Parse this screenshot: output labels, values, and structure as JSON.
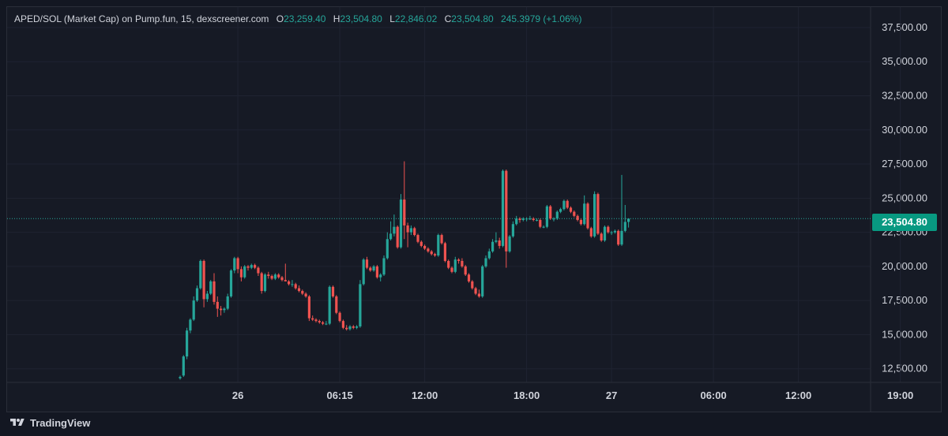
{
  "legend": {
    "pair": "APED/SOL (Market Cap) on Pump.fun, 15, dexscreener.com",
    "open_key": "O",
    "open": "23,259.40",
    "high_key": "H",
    "high": "23,504.80",
    "low_key": "L",
    "low": "22,846.02",
    "close_key": "C",
    "close": "23,504.80",
    "change": "245.3979 (+1.06%)"
  },
  "price_tag": "23,504.80",
  "footer": {
    "brand": "TradingView"
  },
  "colors": {
    "background": "#161a25",
    "grid": "#1f2331",
    "up": "#26a69a",
    "down": "#ef5350",
    "text": "#d1d4dc",
    "price_line": "#26a69a"
  },
  "chart_data": {
    "type": "candlestick",
    "ylim": [
      11500,
      39000
    ],
    "y_ticks": [
      12500,
      15000,
      17500,
      20000,
      22500,
      25000,
      27500,
      30000,
      32500,
      35000,
      37500
    ],
    "y_tick_labels": [
      "12,500.00",
      "15,000.00",
      "17,500.00",
      "20,000.00",
      "22,500.00",
      "25,000.00",
      "27,500.00",
      "30,000.00",
      "32,500.00",
      "35,000.00",
      "37,500.00"
    ],
    "x_tick_labels": [
      "26",
      "06:15",
      "12:00",
      "18:00",
      "27",
      "06:00",
      "12:00",
      "19:00"
    ],
    "x_tick_index": [
      17,
      47,
      72,
      102,
      127,
      157,
      182,
      212
    ],
    "last_price": 23504.8,
    "grid": true,
    "candles": [
      [
        11800,
        12000,
        11700,
        11900
      ],
      [
        12000,
        13500,
        11900,
        13400
      ],
      [
        13400,
        15500,
        13200,
        15300
      ],
      [
        15300,
        16200,
        15100,
        16100
      ],
      [
        16100,
        17800,
        16000,
        17500
      ],
      [
        17500,
        18600,
        17400,
        18400
      ],
      [
        18400,
        20500,
        18300,
        20400
      ],
      [
        20400,
        20500,
        17000,
        17600
      ],
      [
        17600,
        18200,
        17400,
        18000
      ],
      [
        18000,
        19000,
        17900,
        18900
      ],
      [
        18900,
        19500,
        17200,
        17400
      ],
      [
        17400,
        17800,
        16300,
        16900
      ],
      [
        16900,
        17100,
        16400,
        16800
      ],
      [
        16800,
        17000,
        16600,
        16900
      ],
      [
        16900,
        18000,
        16800,
        17800
      ],
      [
        17800,
        19800,
        17700,
        19700
      ],
      [
        19700,
        20700,
        19500,
        20600
      ],
      [
        20600,
        20700,
        19500,
        19800
      ],
      [
        19800,
        20000,
        18900,
        19200
      ],
      [
        19200,
        20100,
        19100,
        20000
      ],
      [
        20000,
        20100,
        19700,
        19900
      ],
      [
        19900,
        20200,
        19800,
        20100
      ],
      [
        20100,
        20200,
        19800,
        19900
      ],
      [
        19900,
        20000,
        19300,
        19500
      ],
      [
        19500,
        19600,
        18000,
        18200
      ],
      [
        18200,
        19500,
        18100,
        19400
      ],
      [
        19400,
        19600,
        19100,
        19300
      ],
      [
        19300,
        19400,
        19000,
        19100
      ],
      [
        19100,
        19500,
        19000,
        19400
      ],
      [
        19400,
        19500,
        19100,
        19200
      ],
      [
        19200,
        19300,
        18900,
        19000
      ],
      [
        19000,
        20200,
        18900,
        18900
      ],
      [
        18900,
        19000,
        18600,
        18700
      ],
      [
        18700,
        19000,
        18500,
        18700
      ],
      [
        18700,
        18800,
        18300,
        18400
      ],
      [
        18400,
        18600,
        18100,
        18200
      ],
      [
        18200,
        18300,
        17900,
        18000
      ],
      [
        18000,
        18100,
        17700,
        17800
      ],
      [
        17800,
        17900,
        16000,
        16200
      ],
      [
        16200,
        16400,
        16000,
        16100
      ],
      [
        16100,
        16200,
        15900,
        16000
      ],
      [
        16000,
        16100,
        15800,
        15900
      ],
      [
        15900,
        16000,
        15700,
        15800
      ],
      [
        15800,
        16000,
        15700,
        15800
      ],
      [
        15800,
        18600,
        15700,
        18500
      ],
      [
        18500,
        18600,
        17700,
        17800
      ],
      [
        17800,
        17900,
        16500,
        16600
      ],
      [
        16600,
        16700,
        15900,
        16000
      ],
      [
        16000,
        16100,
        15400,
        15500
      ],
      [
        15500,
        15700,
        15300,
        15400
      ],
      [
        15400,
        15700,
        15300,
        15600
      ],
      [
        15600,
        15700,
        15400,
        15500
      ],
      [
        15500,
        15700,
        15400,
        15600
      ],
      [
        15600,
        19000,
        15500,
        18700
      ],
      [
        18700,
        20600,
        18600,
        20500
      ],
      [
        20500,
        20700,
        19800,
        19900
      ],
      [
        19900,
        20000,
        19600,
        19700
      ],
      [
        19700,
        20100,
        19600,
        20000
      ],
      [
        20000,
        20100,
        19100,
        19200
      ],
      [
        19200,
        19500,
        18900,
        19400
      ],
      [
        19400,
        20800,
        19300,
        20600
      ],
      [
        20600,
        22500,
        20500,
        22000
      ],
      [
        22000,
        23300,
        21900,
        22400
      ],
      [
        22400,
        23800,
        22200,
        22900
      ],
      [
        22900,
        23000,
        21300,
        21400
      ],
      [
        21400,
        25300,
        21300,
        24900
      ],
      [
        24900,
        27700,
        22000,
        23000
      ],
      [
        23000,
        23200,
        21400,
        22500
      ],
      [
        22500,
        23000,
        22300,
        22800
      ],
      [
        22800,
        22900,
        22200,
        22300
      ],
      [
        22300,
        22400,
        21700,
        21800
      ],
      [
        21800,
        21900,
        21400,
        21500
      ],
      [
        21500,
        21600,
        21200,
        21300
      ],
      [
        21300,
        21400,
        21000,
        21100
      ],
      [
        21100,
        21200,
        20800,
        20900
      ],
      [
        20900,
        21000,
        20700,
        20800
      ],
      [
        20800,
        22400,
        20700,
        22300
      ],
      [
        22300,
        22400,
        21600,
        21700
      ],
      [
        21700,
        21800,
        20300,
        20400
      ],
      [
        20400,
        20500,
        19800,
        19900
      ],
      [
        19900,
        20000,
        19500,
        19600
      ],
      [
        19600,
        20700,
        19500,
        20500
      ],
      [
        20500,
        20600,
        20200,
        20400
      ],
      [
        20400,
        20600,
        19900,
        20000
      ],
      [
        20000,
        20100,
        19300,
        19400
      ],
      [
        19400,
        19500,
        18800,
        18900
      ],
      [
        18900,
        19000,
        18300,
        18400
      ],
      [
        18400,
        18500,
        17900,
        18000
      ],
      [
        18000,
        18300,
        17700,
        17800
      ],
      [
        17800,
        20100,
        17700,
        20000
      ],
      [
        20000,
        20800,
        19900,
        20600
      ],
      [
        20600,
        21300,
        20500,
        21100
      ],
      [
        21100,
        22000,
        21000,
        21800
      ],
      [
        21800,
        22500,
        21700,
        21900
      ],
      [
        21900,
        22100,
        21300,
        21500
      ],
      [
        21500,
        27100,
        21400,
        27000
      ],
      [
        27000,
        27100,
        19900,
        21100
      ],
      [
        21100,
        22300,
        21000,
        22200
      ],
      [
        22200,
        23300,
        22100,
        23100
      ],
      [
        23100,
        23700,
        23000,
        23500
      ],
      [
        23500,
        23600,
        23200,
        23400
      ],
      [
        23400,
        23600,
        23300,
        23500
      ],
      [
        23500,
        23600,
        23300,
        23500
      ],
      [
        23500,
        23700,
        23400,
        23500
      ],
      [
        23500,
        23600,
        23300,
        23400
      ],
      [
        23400,
        23500,
        23300,
        23400
      ],
      [
        23400,
        23500,
        22800,
        22900
      ],
      [
        22900,
        23000,
        22800,
        22900
      ],
      [
        22900,
        24500,
        22800,
        24400
      ],
      [
        24400,
        24500,
        23400,
        23500
      ],
      [
        23500,
        23600,
        23300,
        23500
      ],
      [
        23500,
        24100,
        23400,
        24000
      ],
      [
        24000,
        24300,
        23900,
        24200
      ],
      [
        24200,
        24900,
        24100,
        24800
      ],
      [
        24800,
        24900,
        24200,
        24300
      ],
      [
        24300,
        24400,
        23900,
        24000
      ],
      [
        24000,
        24100,
        23600,
        23700
      ],
      [
        23700,
        23800,
        23300,
        23400
      ],
      [
        23400,
        23500,
        23000,
        23100
      ],
      [
        23100,
        25200,
        23000,
        24600
      ],
      [
        24600,
        24700,
        22700,
        22800
      ],
      [
        22800,
        22900,
        22100,
        22200
      ],
      [
        22200,
        25500,
        22100,
        25300
      ],
      [
        25300,
        25400,
        22300,
        22400
      ],
      [
        22400,
        22500,
        21800,
        21900
      ],
      [
        21900,
        23000,
        21800,
        22900
      ],
      [
        22900,
        23000,
        22400,
        22500
      ],
      [
        22500,
        22600,
        22300,
        22500
      ],
      [
        22500,
        22700,
        22400,
        22600
      ],
      [
        22600,
        22700,
        21500,
        21600
      ],
      [
        21600,
        26700,
        21500,
        22600
      ],
      [
        22600,
        24500,
        22500,
        23259.4
      ],
      [
        23259.4,
        23504.8,
        22846.02,
        23504.8
      ]
    ]
  }
}
